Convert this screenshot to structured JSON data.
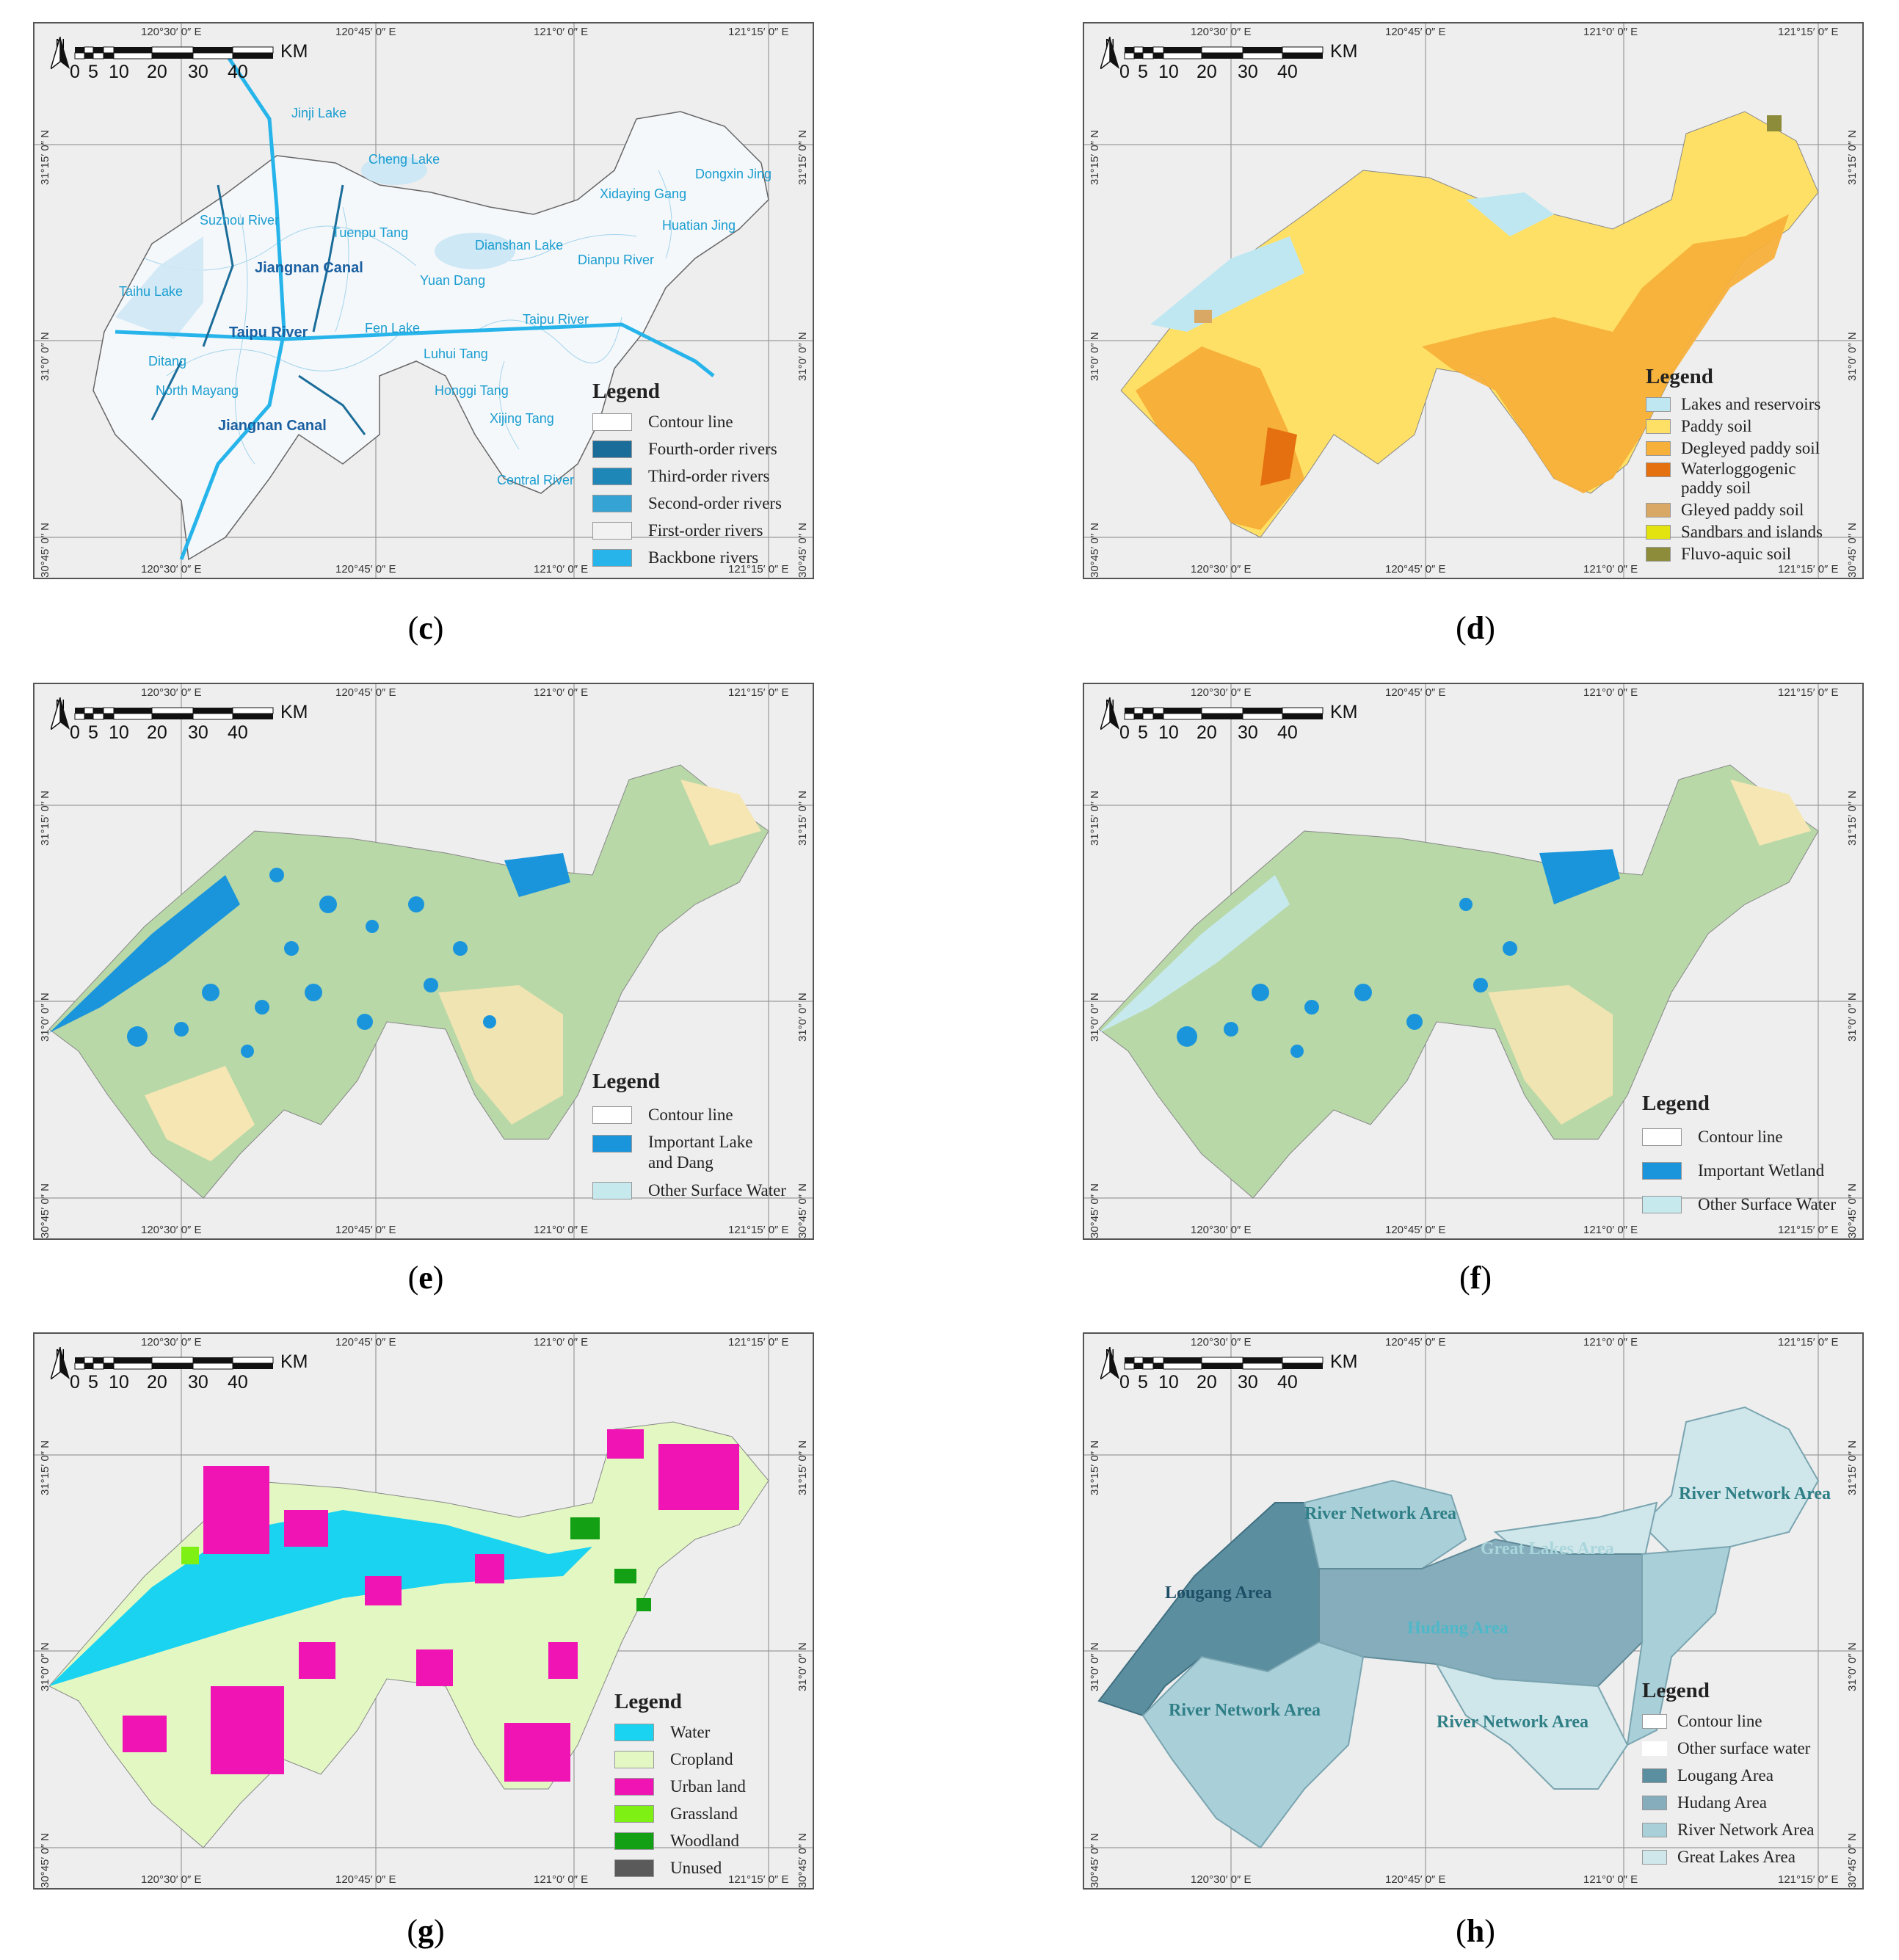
{
  "coordinates": {
    "lon": [
      "120°30′ 0″ E",
      "120°45′ 0″ E",
      "121°0′ 0″ E",
      "121°15′ 0″ E"
    ],
    "lat": [
      "31°15′ 0″ N",
      "31°0′ 0″ N",
      "30°45′ 0″ N"
    ]
  },
  "scale": {
    "ticks": [
      "0",
      "5",
      "10",
      "20",
      "30",
      "40"
    ],
    "unit": "KM"
  },
  "north": "N",
  "panels": {
    "c": {
      "caption": "c",
      "legend_title": "Legend",
      "legend": [
        "Contour line",
        "Fourth-order rivers",
        "Third-order rivers",
        "Second-order rivers",
        "First-order rivers",
        "Backbone rivers"
      ],
      "legend_colors": [
        "#ffffff",
        "#1b6d99",
        "#1f87b8",
        "#35a3d3",
        "#f2f2f2",
        "#26b4ea"
      ],
      "labels": [
        "Jinji Lake",
        "Cheng Lake",
        "Dongxin Jing",
        "Xidaying Gang",
        "Huatian Jing",
        "Suzhou River",
        "Tuenpu Tang",
        "Dianshan Lake",
        "Dianpu River",
        "Jiangnan Canal",
        "Yuan Dang",
        "Taihu Lake",
        "Taipu River",
        "Fen Lake",
        "Taipu River",
        "Luhui Tang",
        "Ditang",
        "North Mayang",
        "Honggi Tang",
        "Xijing Tang",
        "Jiangnan Canal",
        "Central River"
      ]
    },
    "d": {
      "caption": "d",
      "legend_title": "Legend",
      "legend": [
        "Lakes and reservoirs",
        "Paddy soil",
        "Degleyed paddy soil",
        "Waterloggogenic paddy soil",
        "Gleyed paddy soil",
        "Sandbars and islands",
        "Fluvo-aquic soil"
      ],
      "legend_colors": [
        "#bfe7f2",
        "#ffe066",
        "#f7b03a",
        "#e5700f",
        "#d9a864",
        "#e3e30f",
        "#8c8c3b"
      ]
    },
    "e": {
      "caption": "e",
      "legend_title": "Legend",
      "legend": [
        "Contour line",
        "Important Lake and Dang",
        "Other Surface Water"
      ],
      "legend_colors": [
        "#ffffff",
        "#1a95dc",
        "#c6e9ee"
      ]
    },
    "f": {
      "caption": "f",
      "legend_title": "Legend",
      "legend": [
        "Contour line",
        "Important Wetland",
        "Other Surface Water"
      ],
      "legend_colors": [
        "#ffffff",
        "#1a95dc",
        "#c6e9ee"
      ]
    },
    "g": {
      "caption": "g",
      "legend_title": "Legend",
      "legend": [
        "Water",
        "Cropland",
        "Urban land",
        "Grassland",
        "Woodland",
        "Unused"
      ],
      "legend_colors": [
        "#19d3f0",
        "#e3f7c3",
        "#f014b4",
        "#7ef014",
        "#14a014",
        "#5a5a5a"
      ]
    },
    "h": {
      "caption": "h",
      "legend_title": "Legend",
      "legend": [
        "Contour line",
        "Other surface water",
        "Lougang Area",
        "Hudang Area",
        "River Network Area",
        "Great Lakes Area"
      ],
      "legend_colors": [
        "#ffffff",
        "#ffffff",
        "#5b8fa0",
        "#86adbc",
        "#a9cfd9",
        "#cfe6ea"
      ],
      "labels": [
        "River Network Area",
        "River Network Area",
        "Great Lakes Area",
        "Lougang Area",
        "Hudang Area",
        "River Network Area",
        "River Network Area"
      ]
    }
  }
}
